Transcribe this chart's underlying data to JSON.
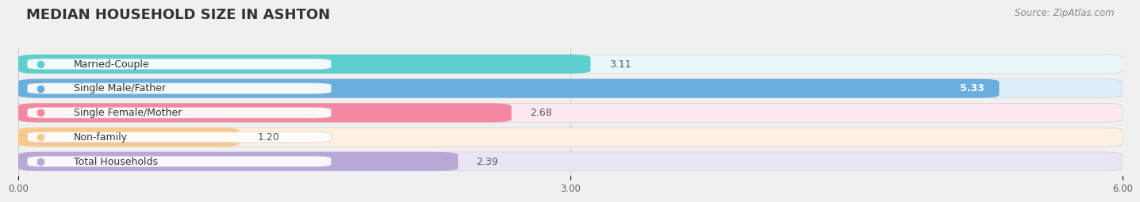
{
  "title": "MEDIAN HOUSEHOLD SIZE IN ASHTON",
  "source": "Source: ZipAtlas.com",
  "categories": [
    "Married-Couple",
    "Single Male/Father",
    "Single Female/Mother",
    "Non-family",
    "Total Households"
  ],
  "values": [
    3.11,
    5.33,
    2.68,
    1.2,
    2.39
  ],
  "bar_colors": [
    "#5dcfcf",
    "#6aaee0",
    "#f388a0",
    "#f8c98a",
    "#b8a8d8"
  ],
  "bar_bg_colors": [
    "#e8f8f8",
    "#ddeef8",
    "#fce8ef",
    "#fdf0e0",
    "#eae4f3"
  ],
  "dot_colors": [
    "#5dcfcf",
    "#6aaee0",
    "#f388a0",
    "#f8c98a",
    "#b8a8d8"
  ],
  "value_inside": [
    false,
    true,
    false,
    false,
    false
  ],
  "xlim": [
    0,
    6.0
  ],
  "xticks": [
    0.0,
    3.0,
    6.0
  ],
  "xtick_labels": [
    "0.00",
    "3.00",
    "6.00"
  ],
  "title_fontsize": 13,
  "source_fontsize": 8.5,
  "label_fontsize": 9,
  "value_fontsize": 9,
  "background_color": "#f0f0f0"
}
